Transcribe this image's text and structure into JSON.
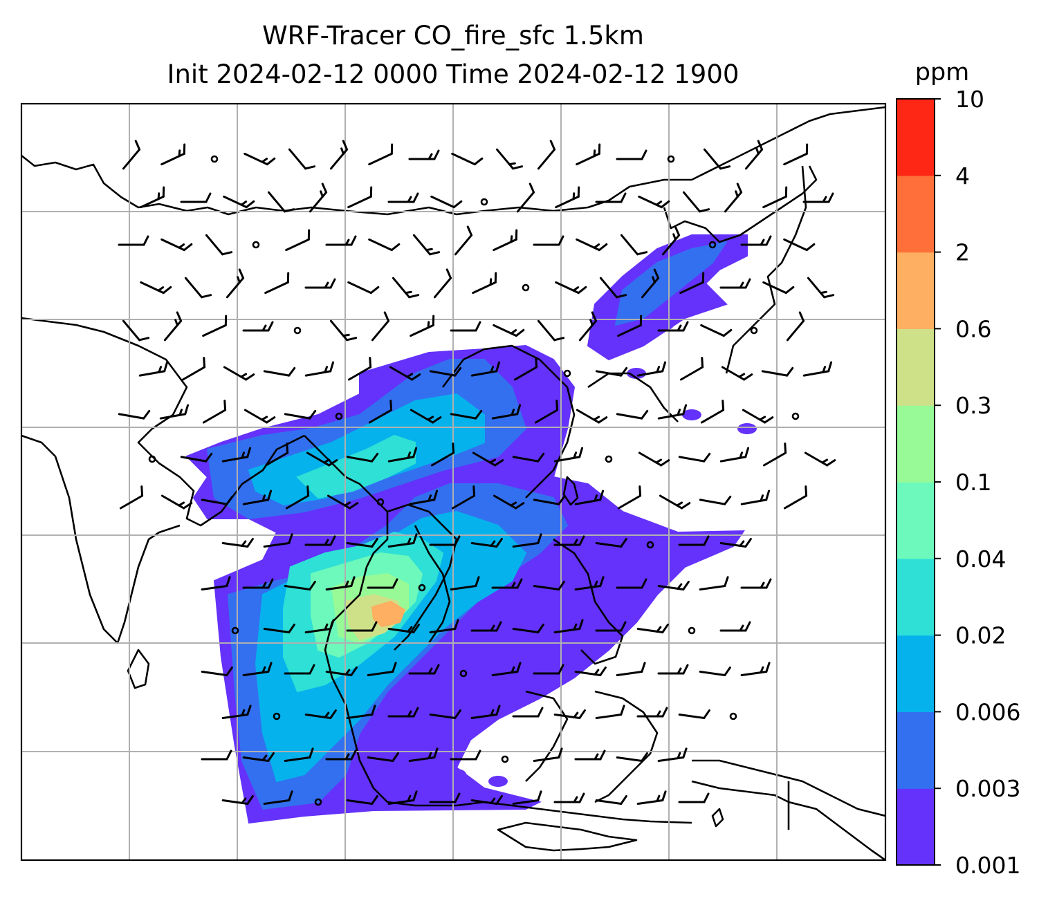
{
  "title": {
    "line1": "WRF-Tracer CO_fire_sfc 1.5km",
    "line2": "Init 2024-02-12 0000 Time 2024-02-12 1900"
  },
  "chart_data": {
    "type": "heatmap",
    "variable": "CO_fire_sfc",
    "colorbar": {
      "label": "ppm",
      "levels": [
        0.001,
        0.003,
        0.006,
        0.02,
        0.04,
        0.1,
        0.3,
        0.6,
        2,
        4,
        10
      ],
      "tick_labels": [
        "0.001",
        "0.003",
        "0.006",
        "0.02",
        "0.04",
        "0.1",
        "0.3",
        "0.6",
        "2",
        "4",
        "10"
      ],
      "colors": [
        "#6432fa",
        "#3370f0",
        "#06b2ec",
        "#2ee0d6",
        "#6cf9bb",
        "#98fa96",
        "#cee189",
        "#feaf62",
        "#fe6f3a",
        "#fe2614"
      ]
    },
    "grid": true,
    "overlays": [
      "coastlines",
      "country borders",
      "wind barbs"
    ],
    "colors": {
      "grid": "#b0b0b0",
      "coastline": "#000000",
      "barb": "#000000"
    }
  }
}
